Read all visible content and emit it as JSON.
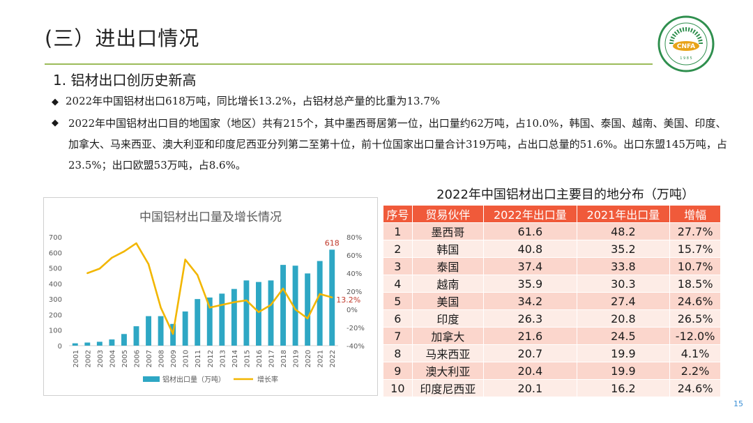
{
  "slide": {
    "title": "(三）进出口情况",
    "subtitle": "1. 铝材出口创历史新高",
    "bullet_marker": "◆",
    "bullets": [
      "2022年中国铝材出口618万吨，同比增长13.2%，占铝材总产量的比重为13.7%",
      "2022年中国铝材出口目的地国家（地区）共有215个，其中墨西哥居第一位，出口量约62万吨，占10.0%，韩国、泰国、越南、美国、印度、加拿大、马来西亚、澳大利亚和印度尼西亚分列第二至第十位，前十位国家出口量合计319万吨，占出口总量的51.6%。出口东盟145万吨，占23.5%；出口欧盟53万吨，占8.6%。"
    ],
    "page_number": "15",
    "logo_text": "CNFA",
    "logo_year": "1 9 8 5",
    "accent_line_color": "#9bbb59"
  },
  "chart_data": {
    "type": "bar",
    "title": "中国铝材出口量及增长情况",
    "categories": [
      "2001",
      "2002",
      "2003",
      "2004",
      "2005",
      "2006",
      "2007",
      "2008",
      "2009",
      "2010",
      "2011",
      "2012",
      "2013",
      "2014",
      "2015",
      "2016",
      "2017",
      "2018",
      "2019",
      "2020",
      "2021",
      "2022"
    ],
    "series": [
      {
        "name": "铝材出口量（万吨）",
        "kind": "bar",
        "axis": "left",
        "color": "#2ea7c4",
        "values": [
          15,
          20,
          25,
          40,
          75,
          125,
          190,
          190,
          140,
          220,
          300,
          310,
          335,
          365,
          420,
          410,
          420,
          520,
          515,
          465,
          545,
          618
        ]
      },
      {
        "name": "增长率",
        "kind": "line",
        "axis": "right",
        "color": "#f2b600",
        "values": [
          null,
          40,
          45,
          57,
          64,
          73,
          50,
          2,
          -27,
          55,
          38,
          2,
          5,
          8,
          10,
          -3,
          5,
          23,
          0,
          -10,
          17,
          13.2
        ]
      }
    ],
    "left_axis": {
      "min": 0,
      "max": 700,
      "ticks": [
        "0",
        "100",
        "200",
        "300",
        "400",
        "500",
        "600",
        "700"
      ]
    },
    "right_axis": {
      "min": -40,
      "max": 80,
      "ticks": [
        "-40%",
        "-20%",
        "0%",
        "20%",
        "40%",
        "60%",
        "80%"
      ]
    },
    "annotations": [
      {
        "label": "618",
        "target": "bar-2022",
        "color": "#c0392b"
      },
      {
        "label": "13.2%",
        "target": "line-2022",
        "color": "#c0392b"
      }
    ],
    "legend": "bottom",
    "grid": false
  },
  "table": {
    "title": "2022年中国铝材出口主要目的地分布（万吨）",
    "headers": [
      "序号",
      "贸易伙伴",
      "2022年出口量",
      "2021年出口量",
      "增幅"
    ],
    "rows": [
      [
        "1",
        "墨西哥",
        "61.6",
        "48.2",
        "27.7%"
      ],
      [
        "2",
        "韩国",
        "40.8",
        "35.2",
        "15.7%"
      ],
      [
        "3",
        "泰国",
        "37.4",
        "33.8",
        "10.7%"
      ],
      [
        "4",
        "越南",
        "35.9",
        "30.3",
        "18.5%"
      ],
      [
        "5",
        "美国",
        "34.2",
        "27.4",
        "24.6%"
      ],
      [
        "6",
        "印度",
        "26.3",
        "20.8",
        "26.5%"
      ],
      [
        "7",
        "加拿大",
        "21.6",
        "24.5",
        "-12.0%"
      ],
      [
        "8",
        "马来西亚",
        "20.7",
        "19.9",
        "4.1%"
      ],
      [
        "9",
        "澳大利亚",
        "20.4",
        "19.9",
        "2.2%"
      ],
      [
        "10",
        "印度尼西亚",
        "20.1",
        "16.2",
        "24.6%"
      ]
    ],
    "header_color": "#f05a3a"
  }
}
